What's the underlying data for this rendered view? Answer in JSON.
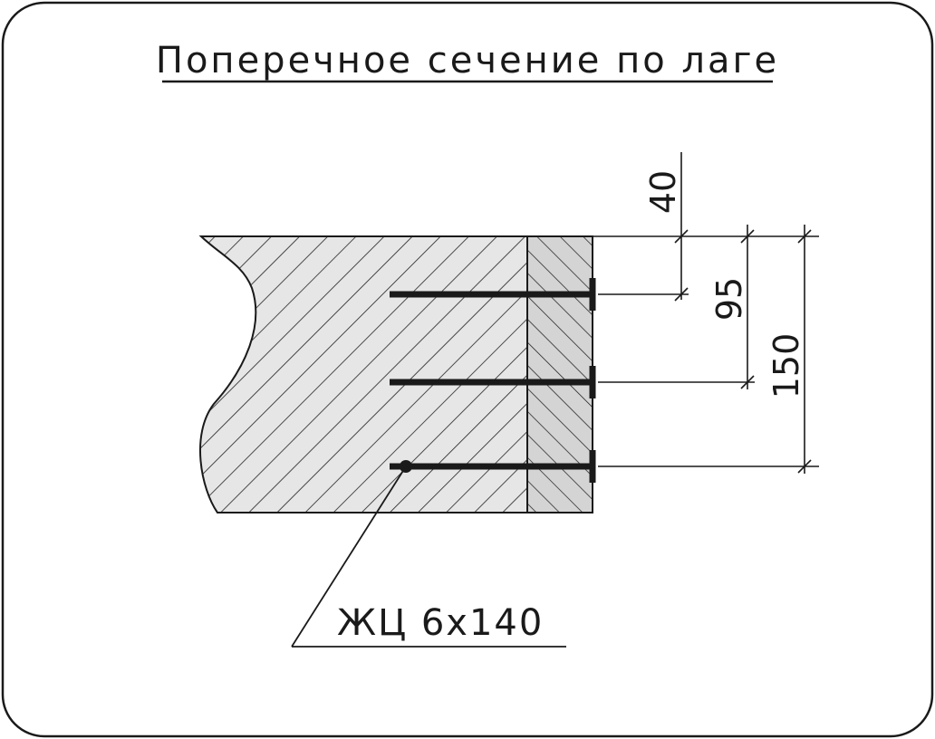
{
  "title": "Поперечное сечение по лаге",
  "dimensions": {
    "d1": "40",
    "d2": "95",
    "d3": "150"
  },
  "callout": "ЖЦ 6х140",
  "colors": {
    "frame": "#1a1a1a",
    "section_fill": "#e6e6e6",
    "board_fill": "#d4d4d4",
    "hatch": "#222222",
    "screw": "#1a1a1a"
  }
}
